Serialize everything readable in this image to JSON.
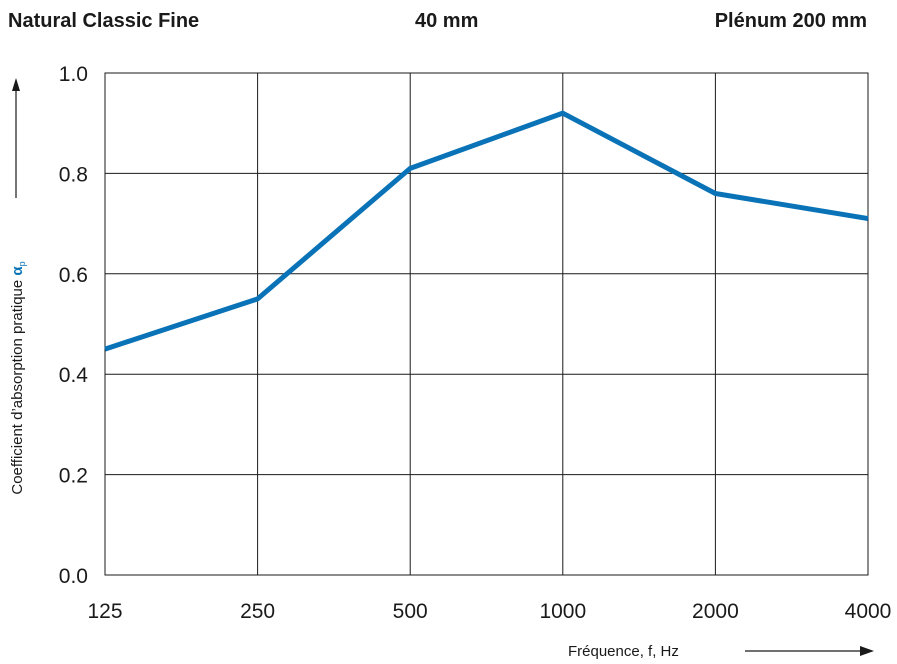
{
  "header": {
    "product": "Natural Classic Fine",
    "thickness": "40 mm",
    "plenum": "Plénum 200 mm"
  },
  "chart_data": {
    "type": "line",
    "title": "",
    "xlabel": "Fréquence, f, Hz",
    "ylabel_text": "Coefficient d’absorption pratique αp",
    "ylabel_symbol": "α",
    "ylabel_subscript": "p",
    "categories": [
      "125",
      "250",
      "500",
      "1000",
      "2000",
      "4000"
    ],
    "series": [
      {
        "values": [
          0.45,
          0.55,
          0.81,
          0.92,
          0.76,
          0.71
        ]
      }
    ],
    "ylim": [
      0.0,
      1.0
    ],
    "yticks": [
      "0.0",
      "0.2",
      "0.4",
      "0.6",
      "0.8",
      "1.0"
    ],
    "grid": true,
    "colors": {
      "line": "#0a73b7",
      "symbol": "#0a73b7",
      "grid": "#1a1a1a"
    }
  }
}
